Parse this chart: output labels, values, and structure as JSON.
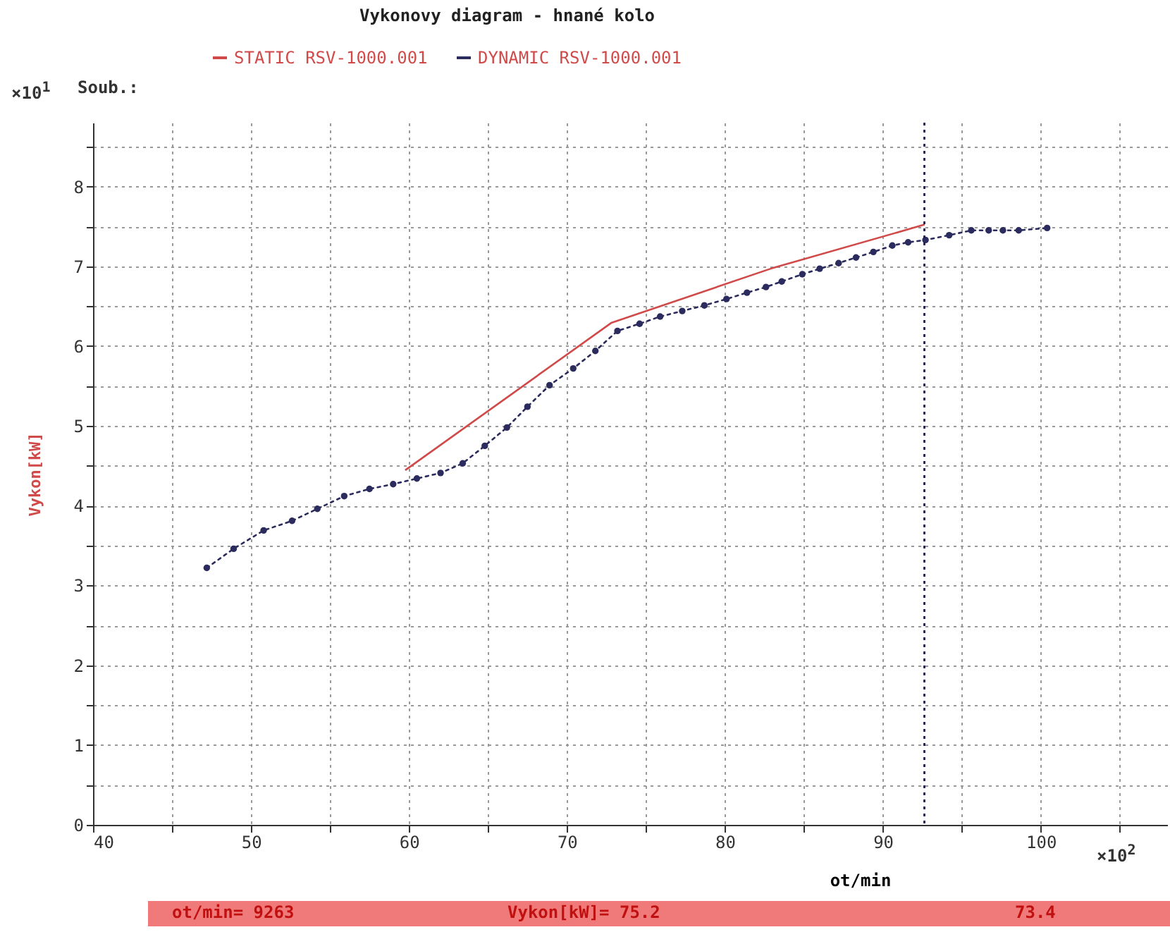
{
  "chart_data": {
    "type": "line",
    "title": "Vykonovy diagram - hnané kolo",
    "xlabel": "ot/min",
    "ylabel": "Vykon[kW]",
    "xlim": [
      40,
      108
    ],
    "xticks": [
      40,
      {
        "value": 45,
        "label": null
      },
      50,
      {
        "value": 55,
        "label": null
      },
      60,
      {
        "value": 65,
        "label": null
      },
      70,
      {
        "value": 75,
        "label": null
      },
      80,
      {
        "value": 85,
        "label": null
      },
      90,
      {
        "value": 95,
        "label": null
      },
      100,
      {
        "value": 105,
        "label": null
      }
    ],
    "ylim": [
      0,
      8.8
    ],
    "yticks": [
      0,
      {
        "value": 0.5,
        "label": null
      },
      1,
      {
        "value": 1.5,
        "label": null
      },
      2,
      {
        "value": 2.5,
        "label": null
      },
      3,
      {
        "value": 3.5,
        "label": null
      },
      4,
      {
        "value": 4.5,
        "label": null
      },
      5,
      {
        "value": 5.5,
        "label": null
      },
      6,
      {
        "value": 6.5,
        "label": null
      },
      7,
      {
        "value": 7.5,
        "label": null
      },
      8,
      {
        "value": 8.5,
        "label": null
      }
    ],
    "grid": true,
    "legend": "top",
    "series": [
      {
        "name": "STATIC RSV-1000.001",
        "color": "#d04a4a",
        "line_style": "solid",
        "marker": "none",
        "x": [
          59.8,
          72.8,
          82.9,
          92.6
        ],
        "values": [
          4.45,
          6.29,
          6.97,
          7.52
        ]
      },
      {
        "name": "DYNAMIC RSV-1000.001",
        "color": "#2b2b5e",
        "line_style": "dotted",
        "marker": "circle",
        "x": [
          47.2,
          48.9,
          50.8,
          52.6,
          54.2,
          55.9,
          57.5,
          59.0,
          60.5,
          62.0,
          63.4,
          64.8,
          66.2,
          67.5,
          68.9,
          70.4,
          71.8,
          73.2,
          74.6,
          75.9,
          77.3,
          78.7,
          80.1,
          81.4,
          82.6,
          83.6,
          84.9,
          86.0,
          87.2,
          88.3,
          89.4,
          90.6,
          91.6,
          92.7,
          94.2,
          95.6,
          96.7,
          97.6,
          98.6,
          100.4
        ],
        "values": [
          3.22,
          3.46,
          3.69,
          3.81,
          3.96,
          4.12,
          4.21,
          4.27,
          4.34,
          4.41,
          4.53,
          4.75,
          4.98,
          5.24,
          5.51,
          5.72,
          5.94,
          6.19,
          6.28,
          6.37,
          6.44,
          6.51,
          6.59,
          6.67,
          6.74,
          6.81,
          6.9,
          6.97,
          7.04,
          7.11,
          7.18,
          7.26,
          7.3,
          7.33,
          7.39,
          7.45,
          7.45,
          7.45,
          7.45,
          7.48
        ]
      }
    ],
    "ref_lines": [
      {
        "axis": "x",
        "value": 92.63,
        "color": "#1a1a4a",
        "line_style": "dotted"
      }
    ],
    "annotations": [
      "×10$^{1}$",
      "Soub.:",
      "×10$^{2}$",
      "ot/min= 9263",
      "Vykon[kW]= 75.2",
      "73.4"
    ]
  }
}
